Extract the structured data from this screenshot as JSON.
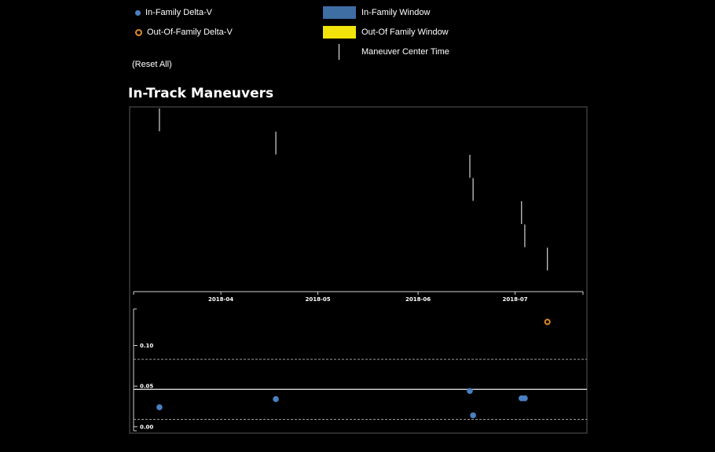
{
  "legend": {
    "in_family_dv": {
      "label": "In-Family Delta-V",
      "color": "#4a7fc1"
    },
    "out_family_dv": {
      "label": "Out-Of-Family Delta-V",
      "color": "#e08a2c"
    },
    "in_family_window": {
      "label": "In-Family Window",
      "color": "#3f6ea5"
    },
    "out_family_window": {
      "label": "Out-Of Family Window",
      "color": "#f2e30a"
    },
    "center_time": {
      "label": "Maneuver Center Time"
    }
  },
  "reset_label": "(Reset All)",
  "title": "In-Track Maneuvers",
  "chart_data": {
    "type": "scatter",
    "title": "In-Track Maneuvers",
    "timeline": {
      "x_ticks": [
        "2018-04",
        "2018-05",
        "2018-06",
        "2018-07"
      ],
      "x_range": [
        "2018-03-05",
        "2018-07-22"
      ],
      "maneuver_center_times": [
        "2018-03-13",
        "2018-04-18",
        "2018-06-17",
        "2018-06-18",
        "2018-07-03",
        "2018-07-04",
        "2018-07-11"
      ]
    },
    "delta_v": {
      "y_ticks": [
        "0.10",
        "0.05",
        "0.00"
      ],
      "y_range": [
        -0.005,
        0.145
      ],
      "upper_bound": 0.083,
      "reference_level": 0.046,
      "lower_bound": 0.009,
      "in_family": [
        {
          "date": "2018-03-13",
          "value": 0.024
        },
        {
          "date": "2018-04-18",
          "value": 0.034
        },
        {
          "date": "2018-06-17",
          "value": 0.044
        },
        {
          "date": "2018-06-18",
          "value": 0.014
        },
        {
          "date": "2018-07-03",
          "value": 0.035
        },
        {
          "date": "2018-07-04",
          "value": 0.035
        }
      ],
      "out_of_family": [
        {
          "date": "2018-07-11",
          "value": 0.129
        }
      ]
    }
  }
}
